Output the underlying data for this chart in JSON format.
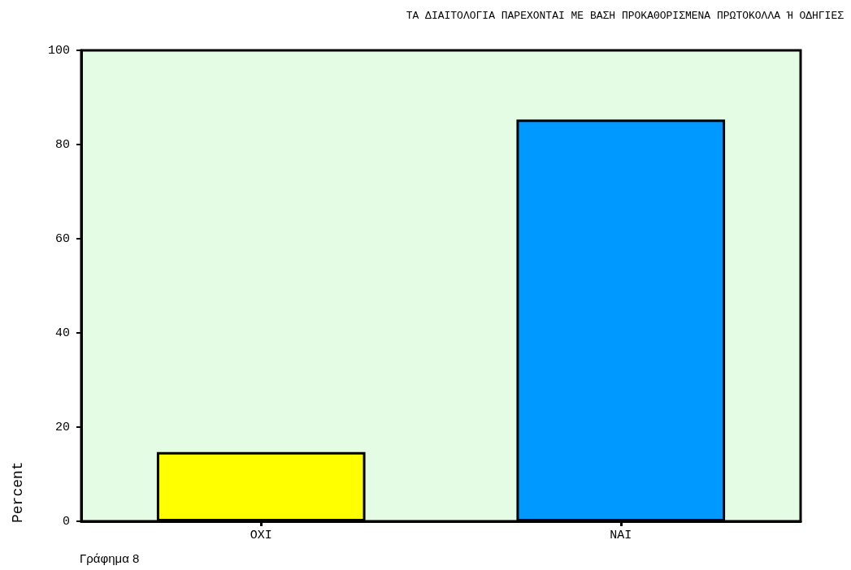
{
  "chart_data": {
    "type": "bar",
    "title": "ΤΑ ΔΙΑΙΤΟΛΟΓΙΑ ΠΑΡΕΧΟΝΤΑΙ ΜΕ ΒΑΣΗ ΠΡΟΚΑΘΟΡΙΣΜΕΝΑ ΠΡΩΤΟΚΟΛΛΑ Ή ΟΔΗΓΙΕΣ",
    "ylabel": "Percent",
    "categories": [
      "ΟΧΙ",
      "ΝΑΙ"
    ],
    "values": [
      14.7,
      85.3
    ],
    "colors": [
      "#ffff00",
      "#0099ff"
    ],
    "ylim": [
      0,
      100
    ],
    "yticks": [
      0,
      20,
      40,
      60,
      80,
      100
    ],
    "grid": false,
    "annotations": [
      "Γράφημα 8"
    ]
  }
}
